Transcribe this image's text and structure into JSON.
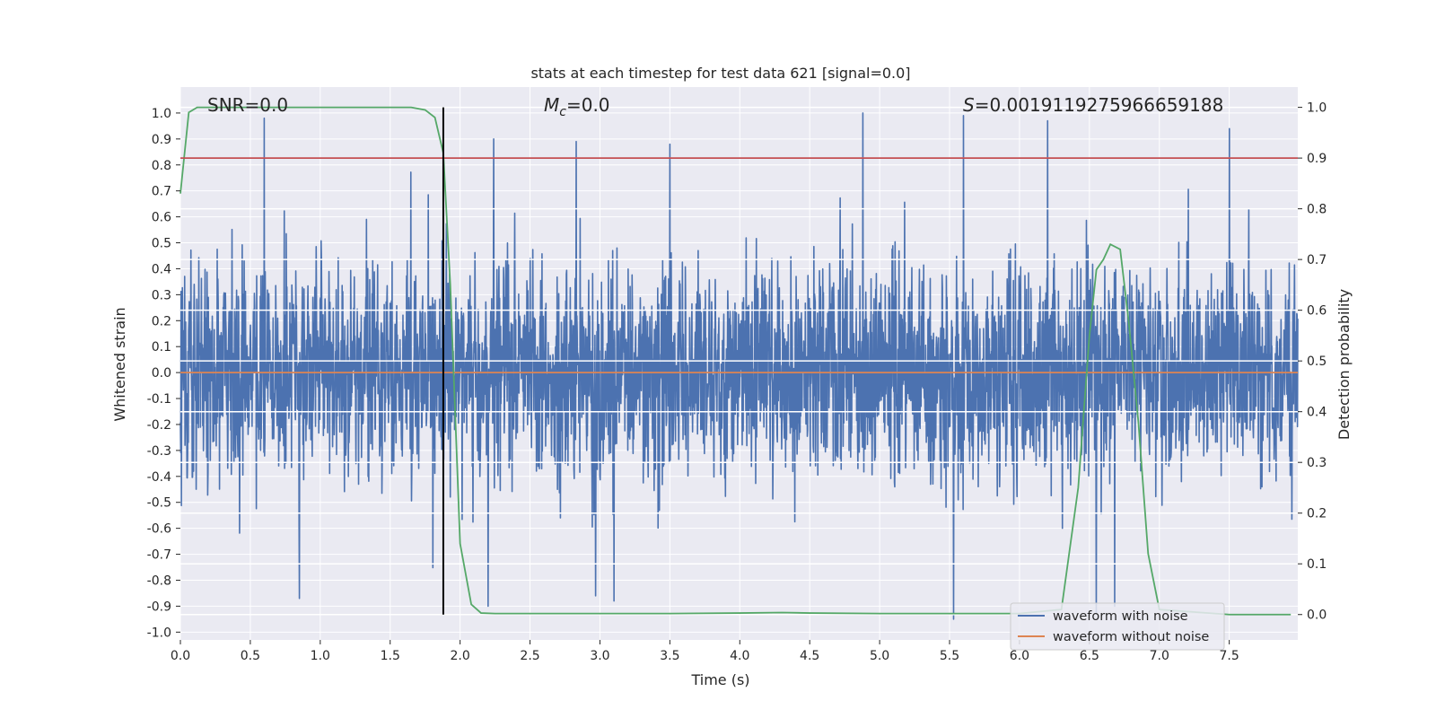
{
  "chart_data": {
    "type": "line",
    "title": "stats at each timestep for test data 621 [signal=0.0]",
    "xlabel": "Time (s)",
    "ylabel_left": "Whitened strain",
    "ylabel_right": "Detection probability",
    "xlim": [
      0.0,
      7.99
    ],
    "ylim_left": [
      -1.03,
      1.1
    ],
    "ylim_right": [
      -0.05,
      1.04
    ],
    "x_ticks": [
      "0.0",
      "0.5",
      "1.0",
      "1.5",
      "2.0",
      "2.5",
      "3.0",
      "3.5",
      "4.0",
      "4.5",
      "5.0",
      "5.5",
      "6.0",
      "6.5",
      "7.0",
      "7.5"
    ],
    "y_ticks_left": [
      "1.0",
      "0.9",
      "0.8",
      "0.7",
      "0.6",
      "0.5",
      "0.4",
      "0.3",
      "0.2",
      "0.1",
      "0.0",
      "-0.1",
      "-0.2",
      "-0.3",
      "-0.4",
      "-0.5",
      "-0.6",
      "-0.7",
      "-0.8",
      "-0.9",
      "-1.0"
    ],
    "y_ticks_right": [
      "1.0",
      "0.9",
      "0.8",
      "0.7",
      "0.6",
      "0.5",
      "0.4",
      "0.3",
      "0.2",
      "0.1",
      "0.0"
    ],
    "grid": true,
    "annotations": {
      "snr": "SNR=0.0",
      "mc_symbol": "M",
      "mc_sub": "c",
      "mc_value": "=0.0",
      "s_symbol": "S",
      "s_value": "=0.0019119275966659188"
    },
    "threshold_probability": 0.9,
    "vertical_marker_time": 1.88,
    "noise_envelope": {
      "description_values": "whitened strain noise samples between approx -0.95 and 1.0",
      "positive_peak_times": [
        0.6,
        2.24,
        2.83,
        3.5,
        4.88,
        5.6,
        6.2,
        7.5
      ],
      "positive_peak_values": [
        0.98,
        0.9,
        0.89,
        0.88,
        1.0,
        0.99,
        0.97,
        0.94
      ],
      "negative_peak_times": [
        0.85,
        2.2,
        2.97,
        3.1,
        5.53,
        6.55,
        6.68
      ],
      "negative_peak_values": [
        -0.87,
        -0.9,
        -0.86,
        -0.88,
        -0.95,
        -0.93,
        -0.9
      ]
    },
    "series": [
      {
        "name": "waveform with noise",
        "color": "#4c72b0",
        "axis": "left"
      },
      {
        "name": "waveform without noise",
        "color": "#dd8452",
        "axis": "left",
        "x": [
          0.0,
          7.99
        ],
        "y": [
          0.0,
          0.0
        ]
      },
      {
        "name": "detection probability",
        "color": "#55a868",
        "axis": "right",
        "x": [
          0.0,
          0.06,
          0.12,
          0.2,
          0.5,
          1.0,
          1.5,
          1.65,
          1.75,
          1.82,
          1.88,
          1.93,
          2.0,
          2.08,
          2.15,
          2.25,
          2.5,
          3.0,
          3.5,
          4.0,
          4.3,
          4.5,
          5.0,
          5.5,
          6.0,
          6.3,
          6.42,
          6.5,
          6.55,
          6.6,
          6.65,
          6.72,
          6.78,
          6.85,
          6.92,
          7.0,
          7.5,
          7.94
        ],
        "y": [
          0.83,
          0.99,
          1.0,
          1.0,
          1.0,
          1.0,
          1.0,
          1.0,
          0.995,
          0.98,
          0.91,
          0.65,
          0.14,
          0.02,
          0.003,
          0.002,
          0.002,
          0.002,
          0.002,
          0.003,
          0.004,
          0.003,
          0.002,
          0.002,
          0.002,
          0.01,
          0.25,
          0.55,
          0.68,
          0.7,
          0.73,
          0.72,
          0.58,
          0.38,
          0.12,
          0.01,
          0.0,
          0.0
        ]
      },
      {
        "name": "threshold",
        "color": "#c44e52",
        "axis": "right",
        "x": [
          0.0,
          7.99
        ],
        "y": [
          0.9,
          0.9
        ]
      },
      {
        "name": "marker",
        "color": "#000000",
        "axis": "right",
        "x": [
          1.88,
          1.88
        ],
        "y": [
          0.0,
          1.0
        ]
      }
    ],
    "legend": {
      "location": "lower-right",
      "entries": [
        {
          "label": "waveform with noise",
          "color": "#4c72b0"
        },
        {
          "label": "waveform without noise",
          "color": "#dd8452"
        }
      ]
    },
    "colors": {
      "background": "#eaeaf2",
      "grid": "#ffffff",
      "noise": "#4c72b0",
      "clean": "#dd8452",
      "probability": "#55a868",
      "threshold": "#c44e52",
      "marker": "#000000"
    }
  }
}
